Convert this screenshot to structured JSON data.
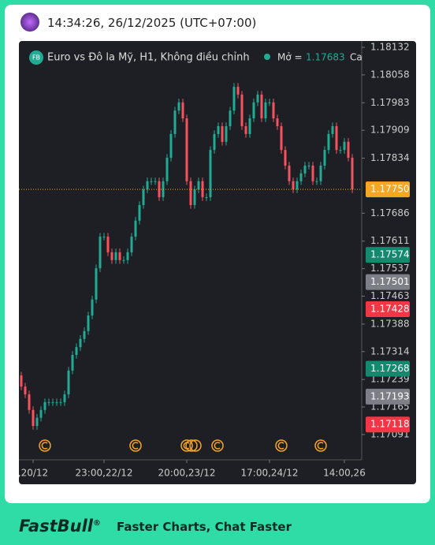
{
  "header": {
    "time": "14:34:26, 26/12/2025 (UTC+07:00)"
  },
  "footer": {
    "brand": "FastBull",
    "mark": "®",
    "tagline": "Faster Charts, Chat Faster"
  },
  "chart_data": {
    "type": "candlestick",
    "legend": {
      "symbol": "FB",
      "name": "Euro vs Đô la Mỹ, H1, Không điều chỉnh",
      "open_label": "Mở =",
      "open_value": 1.17683,
      "extra": "Ca"
    },
    "up_color": "#22ab94",
    "down_color": "#f7525f",
    "open": [
      1.1725,
      1.1722,
      1.17199,
      1.17157,
      1.17114,
      1.17136,
      1.17157,
      1.17178,
      1.17178,
      1.17178,
      1.17178,
      1.17178,
      1.17199,
      1.17263,
      1.17305,
      1.17326,
      1.17348,
      1.17369,
      1.17411,
      1.17454,
      1.17538,
      1.17623,
      1.17623,
      1.17581,
      1.1756,
      1.17581,
      1.1756,
      1.1756,
      1.17581,
      1.17623,
      1.17666,
      1.17708,
      1.1775,
      1.17772,
      1.17772,
      1.17772,
      1.17729,
      1.17772,
      1.17835,
      1.17899,
      1.17962,
      1.17984,
      1.17941,
      1.17772,
      1.17708,
      1.1775,
      1.17772,
      1.17729,
      1.17729,
      1.17856,
      1.17899,
      1.1792,
      1.17878,
      1.1792,
      1.17962,
      1.18026,
      1.18005,
      1.1792,
      1.17899,
      1.17941,
      1.17984,
      1.18005,
      1.17941,
      1.17984,
      1.17984,
      1.17941,
      1.1792,
      1.17856,
      1.17814,
      1.17772,
      1.1775,
      1.17772,
      1.17793,
      1.17814,
      1.17814,
      1.17772,
      1.17772,
      1.17814,
      1.17856,
      1.17899,
      1.1792,
      1.17856,
      1.17856,
      1.17878,
      1.17835
    ],
    "high": [
      1.1726,
      1.1723,
      1.17209,
      1.17167,
      1.17146,
      1.17167,
      1.17188,
      1.17188,
      1.17188,
      1.17188,
      1.17188,
      1.17209,
      1.17273,
      1.17315,
      1.17336,
      1.17358,
      1.17379,
      1.17421,
      1.17464,
      1.17548,
      1.17633,
      1.17633,
      1.17633,
      1.17591,
      1.17591,
      1.17591,
      1.1757,
      1.17591,
      1.17633,
      1.17676,
      1.17718,
      1.1776,
      1.17782,
      1.17782,
      1.17782,
      1.17782,
      1.17782,
      1.17845,
      1.17909,
      1.17972,
      1.17994,
      1.17994,
      1.17951,
      1.17782,
      1.1776,
      1.17782,
      1.17782,
      1.17739,
      1.17866,
      1.17909,
      1.1793,
      1.1793,
      1.1793,
      1.17972,
      1.18036,
      1.18036,
      1.18015,
      1.1793,
      1.17951,
      1.17994,
      1.18015,
      1.18015,
      1.17994,
      1.17994,
      1.17994,
      1.17951,
      1.1793,
      1.17866,
      1.17824,
      1.17782,
      1.17782,
      1.17803,
      1.17824,
      1.17824,
      1.17824,
      1.17782,
      1.17824,
      1.17866,
      1.17909,
      1.1793,
      1.1793,
      1.17866,
      1.17888,
      1.17888,
      1.17845
    ],
    "low": [
      1.1721,
      1.17189,
      1.17147,
      1.17104,
      1.17104,
      1.17126,
      1.17147,
      1.17168,
      1.17168,
      1.17168,
      1.17168,
      1.17168,
      1.17189,
      1.17253,
      1.17295,
      1.17316,
      1.17338,
      1.17359,
      1.17401,
      1.17444,
      1.17528,
      1.17613,
      1.17571,
      1.1755,
      1.1755,
      1.1755,
      1.1755,
      1.1755,
      1.17571,
      1.17613,
      1.17656,
      1.17698,
      1.1774,
      1.17762,
      1.17762,
      1.17719,
      1.17719,
      1.17762,
      1.17825,
      1.17889,
      1.17952,
      1.17931,
      1.17762,
      1.17698,
      1.17698,
      1.1774,
      1.17719,
      1.17719,
      1.17719,
      1.17846,
      1.17889,
      1.17868,
      1.17868,
      1.1791,
      1.17952,
      1.17995,
      1.1791,
      1.17889,
      1.17889,
      1.17931,
      1.17974,
      1.17931,
      1.17931,
      1.17974,
      1.17931,
      1.1791,
      1.17846,
      1.17804,
      1.17762,
      1.1774,
      1.1774,
      1.17762,
      1.17783,
      1.17804,
      1.17762,
      1.17762,
      1.17762,
      1.17804,
      1.17846,
      1.17889,
      1.17846,
      1.17846,
      1.17846,
      1.17825,
      1.1774
    ],
    "close": [
      1.1722,
      1.17199,
      1.17157,
      1.17114,
      1.17136,
      1.17157,
      1.17178,
      1.17178,
      1.17178,
      1.17178,
      1.17178,
      1.17199,
      1.17263,
      1.17305,
      1.17326,
      1.17348,
      1.17369,
      1.17411,
      1.17454,
      1.17538,
      1.17623,
      1.17623,
      1.17581,
      1.1756,
      1.17581,
      1.1756,
      1.1756,
      1.17581,
      1.17623,
      1.17666,
      1.17708,
      1.1775,
      1.17772,
      1.17772,
      1.17772,
      1.17729,
      1.17772,
      1.17835,
      1.17899,
      1.17962,
      1.17984,
      1.17941,
      1.17772,
      1.17708,
      1.1775,
      1.17772,
      1.17729,
      1.17729,
      1.17856,
      1.17899,
      1.1792,
      1.17878,
      1.1792,
      1.17962,
      1.18026,
      1.18005,
      1.1792,
      1.17899,
      1.17941,
      1.17984,
      1.18005,
      1.17941,
      1.17984,
      1.17984,
      1.17941,
      1.1792,
      1.17856,
      1.17814,
      1.17772,
      1.1775,
      1.17772,
      1.17793,
      1.17814,
      1.17814,
      1.17772,
      1.17772,
      1.17814,
      1.17856,
      1.17899,
      1.1792,
      1.17856,
      1.17856,
      1.17878,
      1.17835,
      1.1775
    ],
    "xlim": [
      -0.6,
      86.4
    ],
    "xticks": [
      {
        "value": 3,
        "label": ",20/12"
      },
      {
        "value": 21,
        "label": "23:00,22/12"
      },
      {
        "value": 42,
        "label": "20:00,23/12"
      },
      {
        "value": 63,
        "label": "17:00,24/12"
      },
      {
        "value": 82,
        "label": "14:00,26"
      }
    ],
    "ylim": [
      1.17023,
      1.18149
    ],
    "yticks": [
      1.18132,
      1.18058,
      1.17983,
      1.17909,
      1.17834,
      1.17686,
      1.17611,
      1.17537,
      1.17463,
      1.17388,
      1.17314,
      1.17239,
      1.17165,
      1.17091
    ],
    "price_labels": [
      {
        "value": 1.1775,
        "label": "1.17750",
        "color": "#f5a623"
      },
      {
        "value": 1.17574,
        "label": "1.17574",
        "color": "#138a6e"
      },
      {
        "value": 1.17501,
        "label": "1.17501",
        "color": "#7c7f86"
      },
      {
        "value": 1.17428,
        "label": "1.17428",
        "color": "#f23645"
      },
      {
        "value": 1.17268,
        "label": "1.17268",
        "color": "#138a6e"
      },
      {
        "value": 1.17193,
        "label": "1.17193",
        "color": "#7c7f86"
      },
      {
        "value": 1.17118,
        "label": "1.17118",
        "color": "#f23645"
      }
    ]
  }
}
